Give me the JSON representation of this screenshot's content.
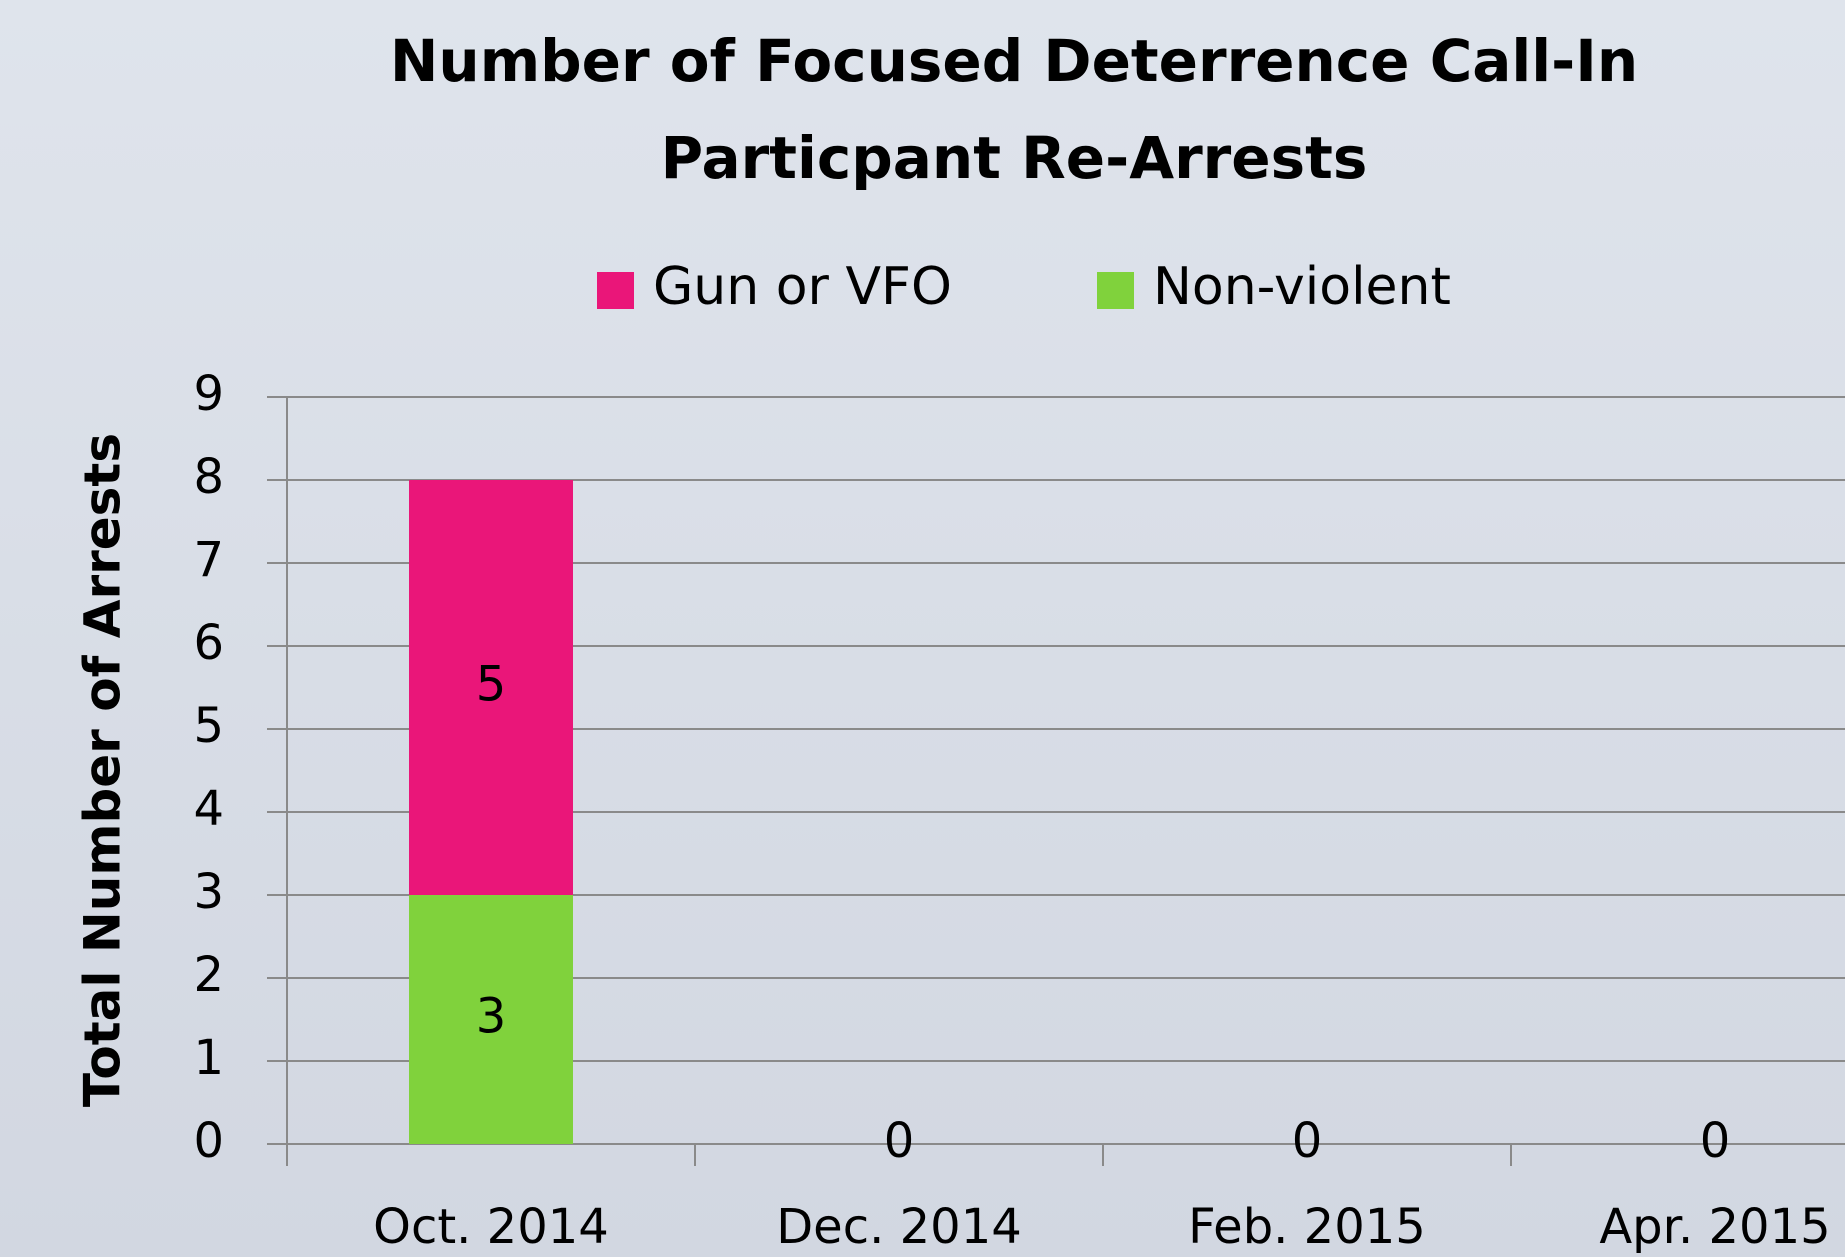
{
  "chart_data": {
    "type": "stacked_bar",
    "title": [
      "Number of Focused Deterrence Call-In",
      "Particpant Re-Arrests"
    ],
    "y_label": "Total Number of Arrests",
    "categories": [
      "Oct. 2014",
      "Dec. 2014",
      "Feb. 2015",
      "Apr. 2015"
    ],
    "series": [
      {
        "name": "Non-violent",
        "color": "#80d23c",
        "values": [
          3,
          0,
          0,
          0
        ]
      },
      {
        "name": "Gun or VFO",
        "color": "#ea1679",
        "values": [
          5,
          null,
          null,
          null
        ]
      }
    ],
    "ylim": [
      0,
      9
    ],
    "yticks": [
      0,
      1,
      2,
      3,
      4,
      5,
      6,
      7,
      8,
      9
    ],
    "grid": true,
    "legend": "top"
  }
}
